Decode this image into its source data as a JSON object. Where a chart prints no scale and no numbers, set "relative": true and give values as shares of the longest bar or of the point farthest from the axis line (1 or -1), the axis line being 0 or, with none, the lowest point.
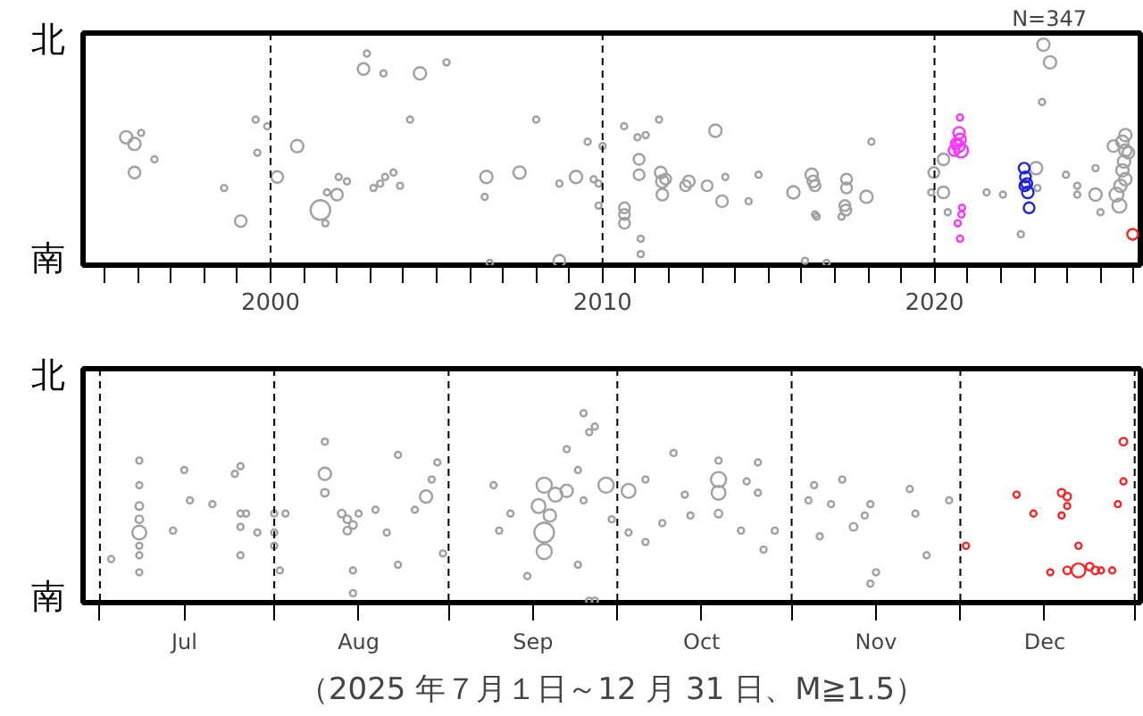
{
  "chart_data": [
    {
      "type": "bubble",
      "annotations": [
        "N=347",
        "北",
        "南"
      ],
      "relative": true,
      "xlim": [
        1994.35,
        2026.2
      ],
      "grid": false,
      "marker": "circle",
      "xticks": [
        {
          "value": 1995,
          "label": null
        },
        {
          "value": 1996,
          "label": null
        },
        {
          "value": 1997,
          "label": null
        },
        {
          "value": 1998,
          "label": null
        },
        {
          "value": 1999,
          "label": null
        },
        {
          "value": 2000,
          "label": "2000"
        },
        {
          "value": 2001,
          "label": null
        },
        {
          "value": 2002,
          "label": null
        },
        {
          "value": 2003,
          "label": null
        },
        {
          "value": 2004,
          "label": null
        },
        {
          "value": 2005,
          "label": null
        },
        {
          "value": 2006,
          "label": null
        },
        {
          "value": 2007,
          "label": null
        },
        {
          "value": 2008,
          "label": null
        },
        {
          "value": 2009,
          "label": null
        },
        {
          "value": 2010,
          "label": "2010"
        },
        {
          "value": 2011,
          "label": null
        },
        {
          "value": 2012,
          "label": null
        },
        {
          "value": 2013,
          "label": null
        },
        {
          "value": 2014,
          "label": null
        },
        {
          "value": 2015,
          "label": null
        },
        {
          "value": 2016,
          "label": null
        },
        {
          "value": 2017,
          "label": null
        },
        {
          "value": 2018,
          "label": null
        },
        {
          "value": 2019,
          "label": null
        },
        {
          "value": 2020,
          "label": "2020"
        },
        {
          "value": 2021,
          "label": null
        },
        {
          "value": 2022,
          "label": null
        },
        {
          "value": 2023,
          "label": null
        },
        {
          "value": 2024,
          "label": null
        },
        {
          "value": 2025,
          "label": null
        },
        {
          "value": 2026,
          "label": null
        }
      ],
      "ref_lines": [
        {
          "axis": "x",
          "value": 2000,
          "color": "#000000",
          "line_style": "dashed"
        },
        {
          "axis": "x",
          "value": 2010,
          "color": "#000000",
          "line_style": "dashed"
        },
        {
          "axis": "x",
          "value": 2020,
          "color": "#000000",
          "line_style": "dashed"
        }
      ],
      "series": [
        {
          "color": "#a0a0a0",
          "x": [
            1995.65,
            1995.9,
            1995.9,
            1996.1,
            1996.5,
            1998.6,
            1999.1,
            1999.55,
            1999.6,
            1999.9,
            2000.2,
            2000.8,
            2001.5,
            2001.65,
            2002.0,
            2001.7,
            2002.05,
            2002.3,
            2002.8,
            2002.9,
            2003.4,
            2003.1,
            2003.3,
            2003.45,
            2003.7,
            2003.9,
            2004.2,
            2004.5,
            2005.3,
            2006.5,
            2006.45,
            2006.6,
            2007.5,
            2008.0,
            2008.7,
            2008.7,
            2009.2,
            2009.55,
            2009.73,
            2009.88,
            2009.88,
            2010.0,
            2010.66,
            2010.66,
            2010.66,
            2010.65,
            2011.15,
            2011.15,
            2011.1,
            2011.1,
            2011.05,
            2011.3,
            2011.7,
            2011.75,
            2011.8,
            2011.8,
            2011.9,
            2012.6,
            2012.5,
            2013.15,
            2013.7,
            2013.4,
            2013.6,
            2014.4,
            2014.7,
            2015.75,
            2016.3,
            2016.35,
            2016.4,
            2016.1,
            2016.4,
            2016.45,
            2016.75,
            2017.35,
            2017.35,
            2017.3,
            2017.33,
            2017.2,
            2017.95,
            2018.1,
            2019.98,
            2019.9,
            2020.4,
            2020.27,
            2020.27,
            2021.57,
            2022.06,
            2022.6,
            2023.06,
            2023.1,
            2023.28,
            2023.48,
            2023.24,
            2023.96,
            2024.3,
            2024.3,
            2024.85,
            2024.85,
            2025.0,
            2025.66,
            2025.75,
            2025.71,
            2025.66,
            2025.75,
            2025.6,
            2025.48,
            2025.57,
            2025.75,
            2025.84,
            2025.39
          ],
          "values": [
            0.58,
            0.55,
            0.42,
            0.6,
            0.48,
            0.35,
            0.2,
            0.66,
            0.51,
            0.63,
            0.4,
            0.54,
            0.25,
            0.19,
            0.32,
            0.33,
            0.4,
            0.38,
            0.89,
            0.96,
            0.87,
            0.35,
            0.37,
            0.4,
            0.42,
            0.36,
            0.66,
            0.87,
            0.92,
            0.4,
            0.31,
            0.01,
            0.42,
            0.66,
            0.02,
            0.37,
            0.4,
            0.56,
            0.39,
            0.37,
            0.27,
            0.54,
            0.26,
            0.23,
            0.19,
            0.63,
            0.12,
            0.05,
            0.48,
            0.41,
            0.58,
            0.59,
            0.66,
            0.42,
            0.38,
            0.32,
            0.39,
            0.38,
            0.36,
            0.36,
            0.4,
            0.61,
            0.29,
            0.29,
            0.41,
            0.33,
            0.41,
            0.38,
            0.36,
            0.02,
            0.23,
            0.22,
            0.01,
            0.39,
            0.35,
            0.27,
            0.25,
            0.22,
            0.31,
            0.56,
            0.42,
            0.33,
            0.24,
            0.48,
            0.33,
            0.33,
            0.32,
            0.14,
            0.44,
            0.35,
            1,
            0.92,
            0.74,
            0.41,
            0.36,
            0.32,
            0.44,
            0.32,
            0.24,
            0.56,
            0.52,
            0.47,
            0.43,
            0.39,
            0.36,
            0.32,
            0.27,
            0.59,
            0.51,
            0.54
          ],
          "sizes": [
            0.4,
            0.4,
            0.35,
            0.1,
            0.1,
            0.1,
            0.35,
            0.1,
            0.1,
            0.1,
            0.35,
            0.4,
            1,
            0.1,
            0.35,
            0.1,
            0.1,
            0.1,
            0.35,
            0.1,
            0.1,
            0.1,
            0.1,
            0.1,
            0.1,
            0.1,
            0.1,
            0.4,
            0.1,
            0.4,
            0.1,
            0.1,
            0.4,
            0.1,
            0.35,
            0.1,
            0.4,
            0.1,
            0.1,
            0.1,
            0.1,
            0.1,
            0.3,
            0.3,
            0.3,
            0.1,
            0.1,
            0.1,
            0.3,
            0.3,
            0.1,
            0.1,
            0.1,
            0.35,
            0.4,
            0.35,
            0.3,
            0.35,
            0.3,
            0.3,
            0.1,
            0.4,
            0.35,
            0.1,
            0.1,
            0.4,
            0.4,
            0.35,
            0.3,
            0.1,
            0.1,
            0.1,
            0.1,
            0.3,
            0.3,
            0.3,
            0.3,
            0.1,
            0.4,
            0.1,
            0.3,
            0.1,
            0.1,
            0.35,
            0.35,
            0.1,
            0.1,
            0.1,
            0.4,
            0.1,
            0.4,
            0.4,
            0.1,
            0.1,
            0.1,
            0.1,
            0.1,
            0.4,
            0.1,
            0.4,
            0.4,
            0.4,
            0.4,
            0.4,
            0.4,
            0.5,
            0.5,
            0.4,
            0.35,
            0.35
          ]
        },
        {
          "color": "#ff33ff",
          "x": [
            2020.74,
            2020.77,
            2020.72,
            2020.8,
            2020.65,
            2020.59,
            2020.77,
            2020.83,
            2020.81,
            2020.7,
            2020.77
          ],
          "values": [
            0.6,
            0.57,
            0.54,
            0.52,
            0.55,
            0.52,
            0.67,
            0.26,
            0.23,
            0.19,
            0.12
          ],
          "sizes": [
            0.35,
            0.35,
            0.4,
            0.5,
            0.3,
            0.3,
            0.1,
            0.1,
            0.1,
            0.1,
            0.1
          ]
        },
        {
          "color": "#2222dd",
          "x": [
            2022.7,
            2022.74,
            2022.78,
            2022.81,
            2022.85,
            2022.72
          ],
          "values": [
            0.44,
            0.4,
            0.37,
            0.33,
            0.26,
            0.36
          ],
          "sizes": [
            0.3,
            0.3,
            0.3,
            0.35,
            0.3,
            0.3
          ]
        },
        {
          "color": "#ff2222",
          "x": [
            2025.97
          ],
          "values": [
            0.14
          ],
          "sizes": [
            0.3
          ]
        }
      ]
    },
    {
      "type": "bubble",
      "annotations": [
        "（2025 年７月１日～12 月 31 日、M≧1.5）",
        "北",
        "南"
      ],
      "relative": true,
      "xlim": [
        "2025-06-28",
        "2026-01-02"
      ],
      "grid": false,
      "marker": "circle",
      "xticks": [
        {
          "value": "2025-07-01",
          "label": null
        },
        {
          "value": "2025-07-16",
          "label": "Jul"
        },
        {
          "value": "2025-08-01",
          "label": null
        },
        {
          "value": "2025-08-16",
          "label": "Aug"
        },
        {
          "value": "2025-09-01",
          "label": null
        },
        {
          "value": "2025-09-16",
          "label": "Sep"
        },
        {
          "value": "2025-10-01",
          "label": null
        },
        {
          "value": "2025-10-16",
          "label": "Oct"
        },
        {
          "value": "2025-11-01",
          "label": null
        },
        {
          "value": "2025-11-16",
          "label": "Nov"
        },
        {
          "value": "2025-12-01",
          "label": null
        },
        {
          "value": "2025-12-16",
          "label": "Dec"
        },
        {
          "value": "2026-01-01",
          "label": null
        }
      ],
      "ref_lines": [
        {
          "axis": "x",
          "value": "2025-07-01",
          "color": "#000000",
          "line_style": "dashed"
        },
        {
          "axis": "x",
          "value": "2025-08-01",
          "color": "#000000",
          "line_style": "dashed"
        },
        {
          "axis": "x",
          "value": "2025-09-01",
          "color": "#000000",
          "line_style": "dashed"
        },
        {
          "axis": "x",
          "value": "2025-10-01",
          "color": "#000000",
          "line_style": "dashed"
        },
        {
          "axis": "x",
          "value": "2025-11-01",
          "color": "#000000",
          "line_style": "dashed"
        },
        {
          "axis": "x",
          "value": "2025-12-01",
          "color": "#000000",
          "line_style": "dashed"
        },
        {
          "axis": "x",
          "value": "2026-01-01",
          "color": "#000000",
          "line_style": "dashed"
        }
      ],
      "series": [
        {
          "color": "#a0a0a0",
          "x": [
            "2025-07-08",
            "2025-07-08",
            "2025-07-08",
            "2025-07-08",
            "2025-07-08",
            "2025-07-08",
            "2025-07-08",
            "2025-07-08",
            "2025-07-03",
            "2025-07-16",
            "2025-07-14",
            "2025-07-17",
            "2025-07-21",
            "2025-07-25",
            "2025-07-26",
            "2025-07-26",
            "2025-07-27",
            "2025-07-26",
            "2025-07-29",
            "2025-07-26",
            "2025-08-01",
            "2025-08-01",
            "2025-08-01",
            "2025-08-03",
            "2025-08-02",
            "2025-08-10",
            "2025-08-10",
            "2025-08-10",
            "2025-08-14",
            "2025-08-13",
            "2025-08-15",
            "2025-08-14",
            "2025-08-16",
            "2025-08-19",
            "2025-08-15",
            "2025-08-15",
            "2025-08-21",
            "2025-08-23",
            "2025-08-23",
            "2025-08-26",
            "2025-08-28",
            "2025-08-29",
            "2025-08-30",
            "2025-08-31",
            "2025-09-18",
            "2025-09-20",
            "2025-09-17",
            "2025-09-22",
            "2025-09-19",
            "2025-09-18",
            "2025-09-18",
            "2025-09-22",
            "2025-09-24",
            "2025-09-25",
            "2025-09-24",
            "2025-09-15",
            "2025-09-09",
            "2025-09-12",
            "2025-09-10",
            "2025-09-26",
            "2025-09-25",
            "2025-09-26",
            "2025-09-27",
            "2025-09-29",
            "2025-09-27",
            "2025-09-30",
            "2025-10-03",
            "2025-10-03",
            "2025-10-06",
            "2025-10-06",
            "2025-10-09",
            "2025-10-11",
            "2025-10-13",
            "2025-10-14",
            "2025-10-19",
            "2025-10-19",
            "2025-10-19",
            "2025-10-19",
            "2025-10-23",
            "2025-10-24",
            "2025-10-26",
            "2025-10-26",
            "2025-10-27",
            "2025-10-29",
            "2025-11-04",
            "2025-11-05",
            "2025-11-06",
            "2025-11-08",
            "2025-11-10",
            "2025-11-12",
            "2025-11-14",
            "2025-11-16",
            "2025-11-15",
            "2025-11-15",
            "2025-11-22",
            "2025-11-23",
            "2025-11-25",
            "2025-11-29"
          ],
          "values": [
            0.37,
            0.75,
            0.62,
            0.51,
            0.44,
            0.3,
            0.25,
            0.16,
            0.23,
            0.7,
            0.38,
            0.54,
            0.52,
            0.68,
            0.72,
            0.47,
            0.47,
            0.4,
            0.37,
            0.25,
            0.47,
            0.3,
            0.37,
            0.47,
            0.17,
            0.68,
            0.85,
            0.58,
            0.44,
            0.47,
            0.41,
            0.38,
            0.47,
            0.49,
            0.17,
            0.05,
            0.37,
            0.78,
            0.2,
            0.49,
            0.56,
            0.65,
            0.74,
            0.26,
            0.62,
            0.57,
            0.51,
            0.59,
            0.46,
            0.37,
            0.27,
            0.81,
            0.7,
            0.54,
            0.2,
            0.14,
            0.62,
            0.47,
            0.38,
            0.9,
            1,
            0.01,
            0.93,
            0.62,
            0.01,
            0.44,
            0.59,
            0.37,
            0.65,
            0.32,
            0.42,
            0.79,
            0.57,
            0.46,
            0.65,
            0.58,
            0.75,
            0.47,
            0.38,
            0.64,
            0.58,
            0.74,
            0.28,
            0.38,
            0.54,
            0.62,
            0.35,
            0.52,
            0.65,
            0.4,
            0.46,
            0.16,
            0.1,
            0.52,
            0.6,
            0.47,
            0.25,
            0.54
          ],
          "sizes": [
            0.5,
            0.1,
            0.1,
            0.15,
            0.15,
            0.1,
            0.1,
            0.1,
            0.1,
            0.1,
            0.1,
            0.1,
            0.1,
            0.1,
            0.1,
            0.1,
            0.1,
            0.1,
            0.1,
            0.1,
            0.1,
            0.1,
            0.1,
            0.1,
            0.1,
            0.4,
            0.1,
            0.15,
            0.15,
            0.15,
            0.15,
            0.15,
            0.1,
            0.1,
            0.1,
            0.1,
            0.1,
            0.1,
            0.1,
            0.1,
            0.4,
            0.1,
            0.1,
            0.1,
            0.6,
            0.5,
            0.5,
            0.4,
            0.4,
            1,
            0.6,
            0.1,
            0.1,
            0.1,
            0.1,
            0.1,
            0.1,
            0.1,
            0.1,
            0.1,
            0.1,
            0.1,
            0.1,
            0.6,
            0.1,
            0.1,
            0.5,
            0.1,
            0.1,
            0.1,
            0.1,
            0.1,
            0.1,
            0.1,
            0.6,
            0.5,
            0.1,
            0.15,
            0.1,
            0.1,
            0.1,
            0.1,
            0.1,
            0.1,
            0.1,
            0.1,
            0.1,
            0.1,
            0.1,
            0.15,
            0.1,
            0.1,
            0.1,
            0.1,
            0.1,
            0.1,
            0.1,
            0.1
          ]
        },
        {
          "color": "#ff2222",
          "x": [
            "2025-12-02",
            "2025-12-11",
            "2025-12-14",
            "2025-12-19",
            "2025-12-20",
            "2025-12-20",
            "2025-12-19",
            "2025-12-22",
            "2025-12-22",
            "2025-12-20",
            "2025-12-17",
            "2025-12-24",
            "2025-12-25",
            "2025-12-26",
            "2025-12-28",
            "2025-12-29",
            "2025-12-30",
            "2025-12-30"
          ],
          "values": [
            0.3,
            0.57,
            0.47,
            0.58,
            0.56,
            0.51,
            0.46,
            0.3,
            0.17,
            0.17,
            0.16,
            0.19,
            0.17,
            0.17,
            0.17,
            0.52,
            0.85,
            0.64
          ],
          "sizes": [
            0.1,
            0.1,
            0.1,
            0.15,
            0.15,
            0.1,
            0.1,
            0.1,
            0.5,
            0.15,
            0.1,
            0.15,
            0.15,
            0.1,
            0.1,
            0.1,
            0.15,
            0.1
          ]
        }
      ]
    }
  ]
}
